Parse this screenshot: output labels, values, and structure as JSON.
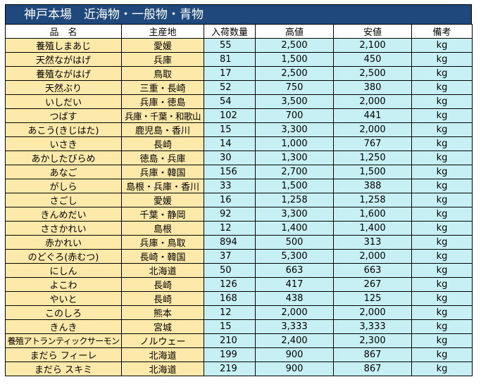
{
  "title": "神戸本場　近海物・一般物・青物",
  "headers": {
    "name": "品　名",
    "origin": "主産地",
    "qty": "入荷数量",
    "high": "高値",
    "low": "安値",
    "note": "備考"
  },
  "rows": [
    {
      "name": "養殖しまあじ",
      "origin": "愛媛",
      "qty": "55",
      "high": "2,500",
      "low": "2,100",
      "unit": "kg"
    },
    {
      "name": "天然ながはげ",
      "origin": "兵庫",
      "qty": "81",
      "high": "1,500",
      "low": "450",
      "unit": "kg"
    },
    {
      "name": "養殖ながはげ",
      "origin": "鳥取",
      "qty": "17",
      "high": "2,500",
      "low": "2,500",
      "unit": "kg"
    },
    {
      "name": "天然ぶり",
      "origin": "三重・長崎",
      "qty": "52",
      "high": "750",
      "low": "380",
      "unit": "kg"
    },
    {
      "name": "いしだい",
      "origin": "兵庫・徳島",
      "qty": "54",
      "high": "3,500",
      "low": "2,000",
      "unit": "kg"
    },
    {
      "name": "つばす",
      "origin": "兵庫・千葉・和歌山",
      "qty": "102",
      "high": "700",
      "low": "441",
      "unit": "kg"
    },
    {
      "name": "あこう(きじはた)",
      "origin": "鹿児島・香川",
      "qty": "15",
      "high": "3,300",
      "low": "2,000",
      "unit": "kg"
    },
    {
      "name": "いさき",
      "origin": "長崎",
      "qty": "14",
      "high": "1,000",
      "low": "767",
      "unit": "kg"
    },
    {
      "name": "あかしたびらめ",
      "origin": "徳島・兵庫",
      "qty": "30",
      "high": "1,300",
      "low": "1,250",
      "unit": "kg"
    },
    {
      "name": "あなご",
      "origin": "兵庫・韓国",
      "qty": "156",
      "high": "2,700",
      "low": "1,500",
      "unit": "kg"
    },
    {
      "name": "がしら",
      "origin": "島根・兵庫・香川",
      "qty": "33",
      "high": "1,500",
      "low": "388",
      "unit": "kg"
    },
    {
      "name": "さごし",
      "origin": "愛媛",
      "qty": "16",
      "high": "1,258",
      "low": "1,258",
      "unit": "kg"
    },
    {
      "name": "きんめだい",
      "origin": "千葉・静岡",
      "qty": "92",
      "high": "3,300",
      "low": "1,600",
      "unit": "kg"
    },
    {
      "name": "ささかれい",
      "origin": "島根",
      "qty": "12",
      "high": "1,400",
      "low": "1,400",
      "unit": "kg"
    },
    {
      "name": "赤かれい",
      "origin": "兵庫・鳥取",
      "qty": "894",
      "high": "500",
      "low": "313",
      "unit": "kg"
    },
    {
      "name": "のどぐろ(赤むつ)",
      "origin": "長崎・韓国",
      "qty": "37",
      "high": "5,300",
      "low": "2,000",
      "unit": "kg"
    },
    {
      "name": "にしん",
      "origin": "北海道",
      "qty": "50",
      "high": "663",
      "low": "663",
      "unit": "kg"
    },
    {
      "name": "よこわ",
      "origin": "長崎",
      "qty": "126",
      "high": "417",
      "low": "267",
      "unit": "kg"
    },
    {
      "name": "やいと",
      "origin": "長崎",
      "qty": "168",
      "high": "438",
      "low": "125",
      "unit": "kg"
    },
    {
      "name": "このしろ",
      "origin": "熊本",
      "qty": "12",
      "high": "2,000",
      "low": "2,000",
      "unit": "kg"
    },
    {
      "name": "きんき",
      "origin": "宮城",
      "qty": "15",
      "high": "3,333",
      "low": "3,333",
      "unit": "kg"
    },
    {
      "name": "養殖アトランティックサーモン",
      "origin": "ノルウェー",
      "qty": "210",
      "high": "2,400",
      "low": "2,300",
      "unit": "kg"
    },
    {
      "name": "まだら フィーレ",
      "origin": "北海道",
      "qty": "199",
      "high": "900",
      "low": "867",
      "unit": "kg"
    },
    {
      "name": "まだら スキミ",
      "origin": "北海道",
      "qty": "219",
      "high": "900",
      "low": "867",
      "unit": "kg"
    }
  ],
  "colors": {
    "title_bg": "#1f497d",
    "name_bg": "#fde9a9",
    "value_bg": "#c6f0f3"
  }
}
